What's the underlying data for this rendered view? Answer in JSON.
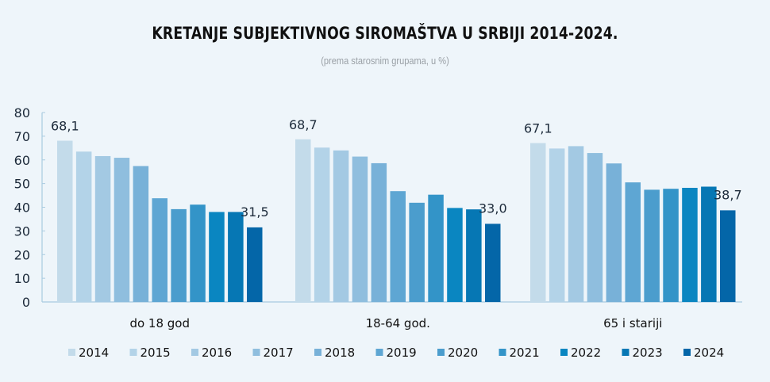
{
  "chart_data": {
    "type": "bar",
    "title": "KRETANJE SUBJEKTIVNOG SIROMAŠTVA U SRBIJI 2014-2024.",
    "subtitle": "(prema starosnim grupama, u %)",
    "xlabel": "",
    "ylabel": "",
    "ylim": [
      0,
      80
    ],
    "yticks": [
      0,
      10,
      20,
      30,
      40,
      50,
      60,
      70,
      80
    ],
    "grid": false,
    "legend_position": "bottom",
    "categories": [
      "do 18 god",
      "18-64 god.",
      "65 i stariji"
    ],
    "series": [
      {
        "name": "2014",
        "color": "#c3dbea",
        "values": [
          68.1,
          68.7,
          67.1
        ]
      },
      {
        "name": "2015",
        "color": "#b3d3e8",
        "values": [
          63.5,
          65.2,
          64.8
        ]
      },
      {
        "name": "2016",
        "color": "#a3c9e3",
        "values": [
          61.6,
          64.0,
          65.8
        ]
      },
      {
        "name": "2017",
        "color": "#8fbede",
        "values": [
          60.9,
          61.4,
          62.9
        ]
      },
      {
        "name": "2018",
        "color": "#78b1d8",
        "values": [
          57.4,
          58.6,
          58.5
        ]
      },
      {
        "name": "2019",
        "color": "#5ea6d3",
        "values": [
          43.8,
          46.8,
          50.5
        ]
      },
      {
        "name": "2020",
        "color": "#4b9dcd",
        "values": [
          39.2,
          41.9,
          47.4
        ]
      },
      {
        "name": "2021",
        "color": "#3394c8",
        "values": [
          41.1,
          45.3,
          47.8
        ]
      },
      {
        "name": "2022",
        "color": "#0a86c1",
        "values": [
          38.0,
          39.7,
          48.2
        ]
      },
      {
        "name": "2023",
        "color": "#0677b4",
        "values": [
          38.0,
          39.1,
          48.7
        ]
      },
      {
        "name": "2024",
        "color": "#0466a8",
        "values": [
          31.5,
          33.0,
          38.7
        ]
      }
    ],
    "data_labels": [
      {
        "category": "do 18 god",
        "series": "2014",
        "text": "68,1"
      },
      {
        "category": "do 18 god",
        "series": "2024",
        "text": "31,5"
      },
      {
        "category": "18-64 god.",
        "series": "2014",
        "text": "68,7"
      },
      {
        "category": "18-64 god.",
        "series": "2024",
        "text": "33,0"
      },
      {
        "category": "65 i stariji",
        "series": "2014",
        "text": "67,1"
      },
      {
        "category": "65 i stariji",
        "series": "2024",
        "text": "38,7"
      }
    ],
    "axis_color": "#a9cbe0",
    "label_color": "#1c2a3a"
  }
}
